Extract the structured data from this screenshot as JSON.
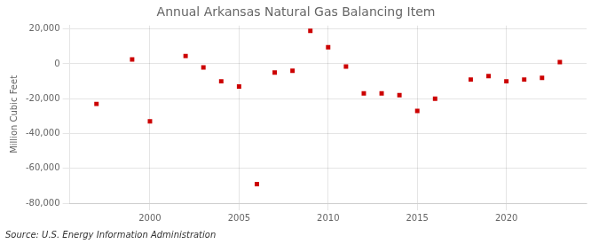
{
  "chart_data": {
    "type": "scatter",
    "title": "Annual Arkansas Natural Gas Balancing Item",
    "ylabel": "Million Cubic Feet",
    "annotation": "Source: U.S. Energy Information Administration",
    "x": [
      1997,
      1999,
      2000,
      2002,
      2003,
      2004,
      2005,
      2006,
      2007,
      2008,
      2009,
      2010,
      2011,
      2012,
      2013,
      2014,
      2015,
      2016,
      2018,
      2019,
      2020,
      2021,
      2022,
      2023
    ],
    "values": [
      -23000,
      2500,
      -33000,
      4500,
      -2000,
      -10000,
      -13000,
      -69000,
      -5000,
      -4000,
      19000,
      9500,
      -1500,
      -17000,
      -17000,
      -18000,
      -27000,
      -20000,
      -9000,
      -7000,
      -10000,
      -9000,
      -8000,
      1000
    ],
    "color": "#cc0000",
    "marker": "square",
    "xlim": [
      1995.5,
      2024.5
    ],
    "ylim": [
      -80000,
      22000
    ],
    "xticks": [
      2000,
      2005,
      2010,
      2015,
      2020
    ],
    "yticks": [
      {
        "value": -80000,
        "label": "-80,000"
      },
      {
        "value": -60000,
        "label": "-60,000"
      },
      {
        "value": -40000,
        "label": "-40,000"
      },
      {
        "value": -20000,
        "label": "-20,000"
      },
      0,
      {
        "value": 20000,
        "label": "20,000"
      }
    ],
    "grid": true
  }
}
